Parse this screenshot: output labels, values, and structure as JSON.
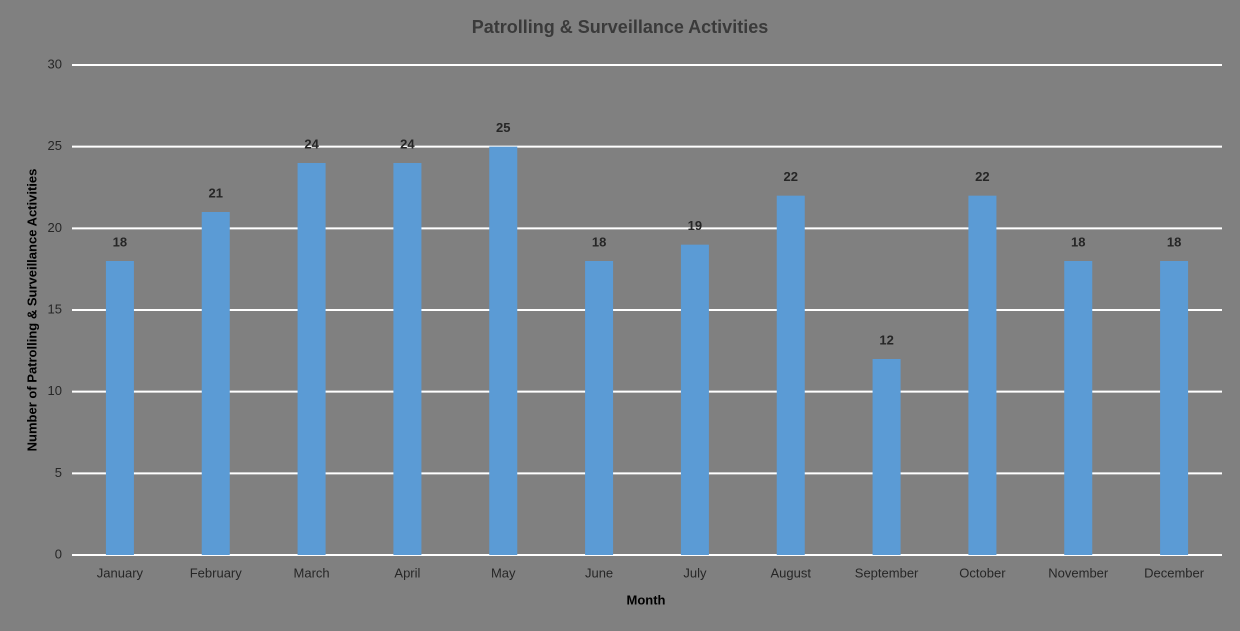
{
  "chart_data": {
    "type": "bar",
    "title": "Patrolling & Surveillance Activities",
    "x_label": "Month",
    "y_label": "Number of Patrolling & Surveillance Activities",
    "categories": [
      "January",
      "February",
      "March",
      "April",
      "May",
      "June",
      "July",
      "August",
      "September",
      "October",
      "November",
      "December"
    ],
    "values": [
      18,
      21,
      24,
      24,
      25,
      18,
      19,
      22,
      12,
      22,
      18,
      18
    ],
    "color": "#5b9bd5",
    "ylim": [
      0,
      30
    ],
    "yticks": [
      0,
      5,
      10,
      15,
      20,
      25,
      30
    ],
    "grid": true,
    "data_labels": true
  }
}
